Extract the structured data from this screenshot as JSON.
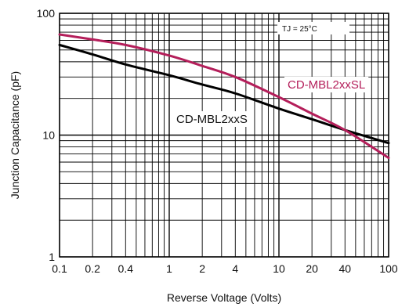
{
  "chart_data": {
    "type": "line",
    "title": "",
    "xlabel": "Reverse Voltage (Volts)",
    "ylabel": "Junction Capacitance (pF)",
    "x_scale": "log",
    "y_scale": "log",
    "xlim": [
      0.1,
      100
    ],
    "ylim": [
      1,
      100
    ],
    "grid": true,
    "x_tick_labels": [
      {
        "value": 0.1,
        "label": "0.1"
      },
      {
        "value": 0.2,
        "label": "0.2"
      },
      {
        "value": 0.4,
        "label": "0.4"
      },
      {
        "value": 1,
        "label": "1"
      },
      {
        "value": 2,
        "label": "2"
      },
      {
        "value": 4,
        "label": "4"
      },
      {
        "value": 10,
        "label": "10"
      },
      {
        "value": 20,
        "label": "20"
      },
      {
        "value": 40,
        "label": "40"
      },
      {
        "value": 100,
        "label": "100"
      }
    ],
    "y_tick_labels": [
      {
        "value": 1,
        "label": "1"
      },
      {
        "value": 10,
        "label": "10"
      },
      {
        "value": 100,
        "label": "100"
      }
    ],
    "annotation": {
      "text": "TJ = 25°C"
    },
    "series": [
      {
        "name": "CD-MBL2xxS",
        "color": "#000000",
        "x": [
          0.1,
          0.2,
          0.4,
          1,
          2,
          4,
          10,
          20,
          40,
          100
        ],
        "y": [
          55,
          46,
          38,
          31,
          26,
          22,
          16.5,
          13.5,
          11,
          8.6
        ]
      },
      {
        "name": "CD-MBL2xxSL",
        "color": "#b41e5a",
        "x": [
          0.1,
          0.2,
          0.4,
          1,
          2,
          4,
          10,
          20,
          40,
          100
        ],
        "y": [
          67,
          61,
          55,
          45,
          37,
          30,
          20.5,
          15,
          11,
          6.5
        ]
      }
    ]
  }
}
